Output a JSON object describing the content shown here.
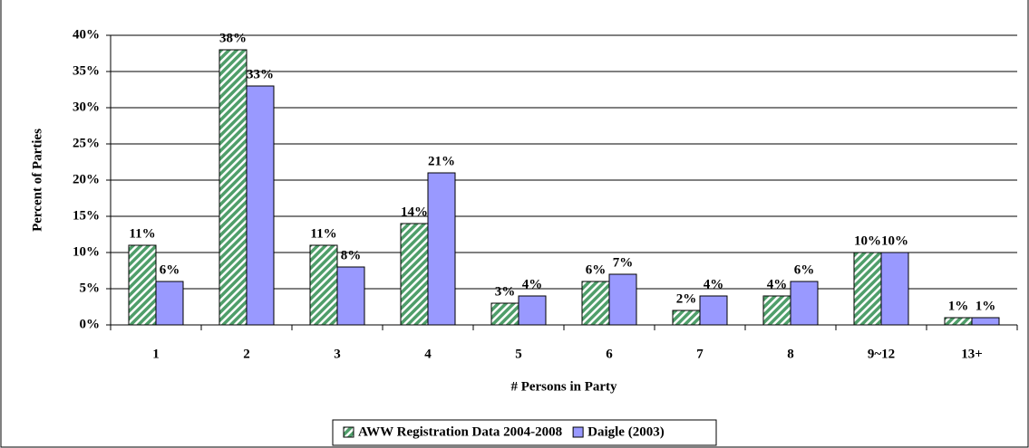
{
  "chart_data": {
    "type": "bar",
    "categories": [
      "1",
      "2",
      "3",
      "4",
      "5",
      "6",
      "7",
      "8",
      "9~12",
      "13+"
    ],
    "x_label": "# Persons in Party",
    "y_label": "Percent of Parties",
    "series": [
      {
        "name": "AWW Registration Data 2004-2008",
        "color": "#4f9e6a",
        "pattern": "hatch",
        "values": [
          11,
          38,
          11,
          14,
          3,
          6,
          2,
          4,
          10,
          1
        ],
        "value_labels": [
          "11%",
          "38%",
          "11%",
          "14%",
          "3%",
          "6%",
          "2%",
          "4%",
          "10%",
          "1%"
        ]
      },
      {
        "name": "Daigle (2003)",
        "color": "#9999ff",
        "values": [
          6,
          33,
          8,
          21,
          4,
          7,
          4,
          6,
          10,
          1
        ],
        "value_labels": [
          "6%",
          "33%",
          "8%",
          "21%",
          "4%",
          "7%",
          "4%",
          "6%",
          "10%",
          "1%"
        ]
      }
    ],
    "ylim": [
      0,
      40
    ],
    "yticks": [
      {
        "value": 0,
        "label": "0%"
      },
      {
        "value": 5,
        "label": "5%"
      },
      {
        "value": 10,
        "label": "10%"
      },
      {
        "value": 15,
        "label": "15%"
      },
      {
        "value": 20,
        "label": "20%"
      },
      {
        "value": 25,
        "label": "25%"
      },
      {
        "value": 30,
        "label": "30%"
      },
      {
        "value": 35,
        "label": "35%"
      },
      {
        "value": 40,
        "label": "40%"
      }
    ],
    "grid": true,
    "legend": "bottom"
  }
}
